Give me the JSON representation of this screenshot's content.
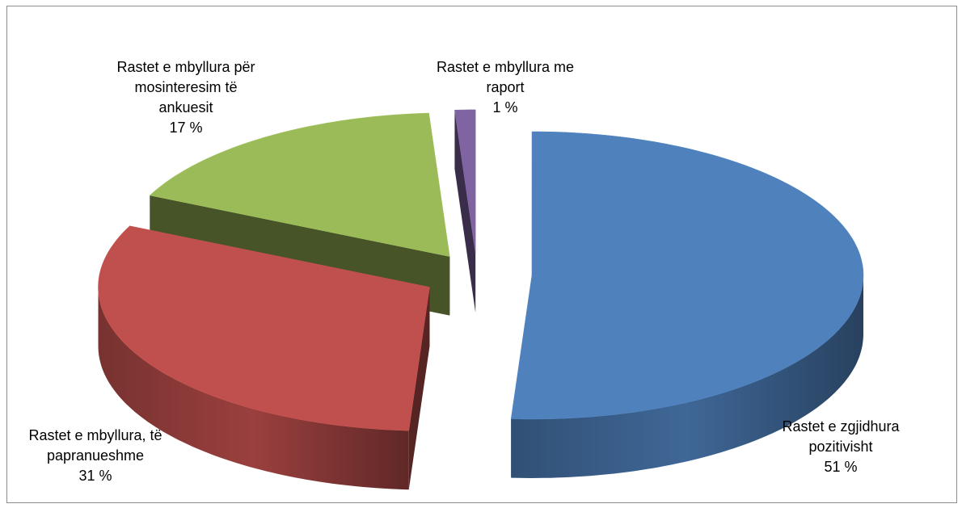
{
  "chart_data": {
    "type": "pie",
    "style": "3d-exploded",
    "series": [
      {
        "label_lines": [
          "Rastet e zgjidhura",
          "pozitivisht"
        ],
        "value": 51,
        "value_label": "51 %",
        "color": "#4f81bd"
      },
      {
        "label_lines": [
          "Rastet e mbyllura, të",
          "papranueshme"
        ],
        "value": 31,
        "value_label": "31 %",
        "color": "#c0504d"
      },
      {
        "label_lines": [
          "Rastet e mbyllura për",
          "mosinteresim të",
          "ankuesit"
        ],
        "value": 17,
        "value_label": "17 %",
        "color": "#9bbb59"
      },
      {
        "label_lines": [
          "Rastet e mbyllura me",
          "raport"
        ],
        "value": 1,
        "value_label": "1 %",
        "color": "#8064a2"
      }
    ]
  }
}
